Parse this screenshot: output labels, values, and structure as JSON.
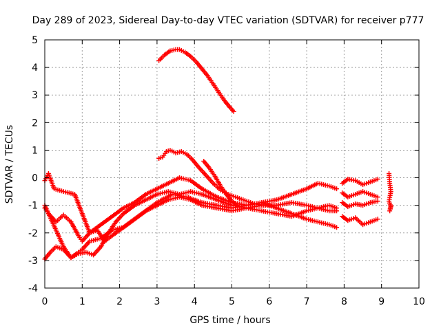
{
  "chart_data": {
    "type": "scatter",
    "title": "Day 289 of 2023, Sidereal Day-to-day VTEC variation (SDTVAR) for receiver p777",
    "xlabel": "GPS time / hours",
    "ylabel": "SDTVAR / TECUs",
    "xlim": [
      0,
      10
    ],
    "ylim": [
      -4,
      5
    ],
    "xticks": [
      0,
      1,
      2,
      3,
      4,
      5,
      6,
      7,
      8,
      9,
      10
    ],
    "yticks": [
      -4,
      -3,
      -2,
      -1,
      0,
      1,
      2,
      3,
      4,
      5
    ],
    "grid": true,
    "marker": "+",
    "color": "#ff0000",
    "series": [
      {
        "name": "track-high-arc",
        "x": [
          3.05,
          3.2,
          3.35,
          3.5,
          3.6,
          3.75,
          3.9,
          4.05,
          4.2,
          4.35,
          4.5,
          4.65,
          4.8,
          4.95,
          5.05
        ],
        "y": [
          4.25,
          4.45,
          4.6,
          4.65,
          4.65,
          4.55,
          4.4,
          4.2,
          3.95,
          3.7,
          3.4,
          3.1,
          2.8,
          2.55,
          2.4
        ]
      },
      {
        "name": "track-mid-upper",
        "x": [
          3.05,
          3.15,
          3.25,
          3.35,
          3.5,
          3.65,
          3.8,
          3.95,
          4.1,
          4.3,
          4.5,
          4.7,
          4.9,
          5.1,
          5.3,
          5.6,
          5.9
        ],
        "y": [
          0.7,
          0.75,
          0.95,
          1.0,
          0.9,
          0.95,
          0.85,
          0.65,
          0.4,
          0.1,
          -0.2,
          -0.45,
          -0.6,
          -0.7,
          -0.8,
          -0.95,
          -1.0
        ]
      },
      {
        "name": "track-short-segment",
        "x": [
          4.25,
          4.4,
          4.55,
          4.7,
          4.85,
          5.0,
          5.15
        ],
        "y": [
          0.6,
          0.35,
          0.05,
          -0.3,
          -0.6,
          -0.85,
          -1.0
        ]
      },
      {
        "name": "track-a",
        "x": [
          0.0,
          0.1,
          0.25,
          0.5,
          0.8,
          1.0,
          1.2,
          1.5,
          1.8,
          2.1,
          2.4,
          2.7,
          3.0,
          3.3,
          3.6,
          3.9,
          4.2,
          4.6,
          5.0,
          5.4,
          5.8,
          6.2,
          6.6,
          7.0,
          7.3,
          7.6,
          7.8
        ],
        "y": [
          -0.1,
          0.15,
          -0.4,
          -0.5,
          -0.6,
          -1.3,
          -2.0,
          -1.7,
          -1.4,
          -1.1,
          -0.9,
          -0.6,
          -0.4,
          -0.2,
          0.0,
          -0.1,
          -0.4,
          -0.7,
          -0.9,
          -1.0,
          -0.9,
          -0.8,
          -0.6,
          -0.4,
          -0.2,
          -0.3,
          -0.4
        ]
      },
      {
        "name": "track-b",
        "x": [
          0.0,
          0.1,
          0.3,
          0.5,
          0.7,
          0.9,
          1.0,
          1.2,
          1.4,
          1.6,
          1.8,
          2.0,
          2.3,
          2.6,
          3.0,
          3.4,
          3.8,
          4.2,
          4.6,
          5.0,
          5.4,
          5.8,
          6.2,
          6.6,
          7.0,
          7.3,
          7.6,
          7.8
        ],
        "y": [
          -1.1,
          -1.3,
          -1.6,
          -1.35,
          -1.6,
          -2.1,
          -2.3,
          -2.0,
          -1.9,
          -2.3,
          -2.1,
          -1.9,
          -1.6,
          -1.3,
          -0.9,
          -0.6,
          -0.7,
          -0.9,
          -1.0,
          -1.1,
          -1.0,
          -0.9,
          -1.1,
          -1.3,
          -1.5,
          -1.6,
          -1.7,
          -1.8
        ]
      },
      {
        "name": "track-c",
        "x": [
          0.0,
          0.15,
          0.3,
          0.5,
          0.7,
          0.9,
          1.1,
          1.3,
          1.5,
          1.7,
          1.9,
          2.1,
          2.4,
          2.7,
          3.0,
          3.3,
          3.6,
          3.9,
          4.2,
          4.6,
          5.0,
          5.4,
          5.8,
          6.2,
          6.6,
          7.0,
          7.3,
          7.6,
          7.8
        ],
        "y": [
          -2.95,
          -2.7,
          -2.5,
          -2.6,
          -2.9,
          -2.75,
          -2.7,
          -2.8,
          -2.5,
          -2.0,
          -1.6,
          -1.3,
          -1.0,
          -0.8,
          -0.6,
          -0.5,
          -0.6,
          -0.5,
          -0.6,
          -0.8,
          -1.0,
          -1.1,
          -1.2,
          -1.3,
          -1.4,
          -1.2,
          -1.1,
          -1.0,
          -1.1
        ]
      },
      {
        "name": "track-d",
        "x": [
          0.0,
          0.1,
          0.3,
          0.5,
          0.7,
          0.9,
          1.0,
          1.2,
          1.5,
          1.8,
          2.1,
          2.4,
          2.7,
          3.0,
          3.3,
          3.6,
          3.9,
          4.2,
          4.6,
          5.0,
          5.4,
          5.8,
          6.2,
          6.6,
          7.0,
          7.3,
          7.6,
          7.8
        ],
        "y": [
          -1.0,
          -1.3,
          -1.9,
          -2.5,
          -2.9,
          -2.7,
          -2.6,
          -2.3,
          -2.2,
          -1.9,
          -1.8,
          -1.5,
          -1.2,
          -1.0,
          -0.8,
          -0.7,
          -0.8,
          -1.0,
          -1.1,
          -1.2,
          -1.1,
          -1.0,
          -1.0,
          -0.9,
          -1.0,
          -1.1,
          -1.2,
          -1.2
        ]
      },
      {
        "name": "late-group-1",
        "x": [
          7.95,
          8.1,
          8.3,
          8.5,
          8.7,
          8.9
        ],
        "y": [
          -0.2,
          -0.05,
          -0.1,
          -0.25,
          -0.15,
          -0.05
        ]
      },
      {
        "name": "late-group-2",
        "x": [
          7.95,
          8.1,
          8.3,
          8.5,
          8.7,
          8.9
        ],
        "y": [
          -0.55,
          -0.7,
          -0.6,
          -0.5,
          -0.6,
          -0.7
        ]
      },
      {
        "name": "late-group-3",
        "x": [
          7.95,
          8.1,
          8.3,
          8.5,
          8.7,
          8.9
        ],
        "y": [
          -0.9,
          -1.05,
          -0.95,
          -1.0,
          -0.9,
          -0.85
        ]
      },
      {
        "name": "late-group-4",
        "x": [
          7.95,
          8.1,
          8.3,
          8.5,
          8.7,
          8.9
        ],
        "y": [
          -1.4,
          -1.55,
          -1.45,
          -1.7,
          -1.6,
          -1.5
        ]
      },
      {
        "name": "late-edge",
        "x": [
          9.2,
          9.22,
          9.25,
          9.2,
          9.25,
          9.22,
          9.25
        ],
        "y": [
          0.15,
          -0.2,
          -0.5,
          -0.85,
          -1.05,
          -1.2,
          -1.0
        ]
      }
    ]
  }
}
